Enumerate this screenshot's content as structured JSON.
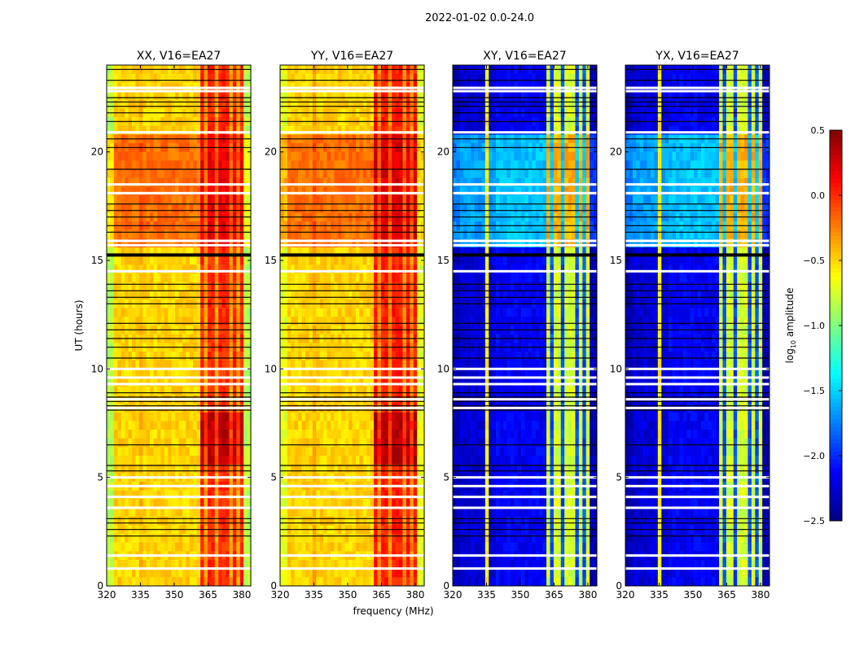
{
  "chart_data": {
    "type": "heatmap",
    "title": "2022-01-02 0.0-24.0",
    "xlabel": "frequency (MHz)",
    "ylabel": "UT (hours)",
    "xlim": [
      320,
      384
    ],
    "ylim": [
      0,
      24
    ],
    "xticks": [
      "320",
      "335",
      "350",
      "365",
      "380"
    ],
    "yticks": [
      "0",
      "5",
      "10",
      "15",
      "20"
    ],
    "colorbar": {
      "label": "log10 amplitude",
      "range": [
        -2.5,
        0.5
      ],
      "ticks": [
        "0.5",
        "0.0",
        "−0.5",
        "−1.0",
        "−1.5",
        "−2.0",
        "−2.5"
      ],
      "colormap": "jet"
    },
    "panels": [
      {
        "title": "XX, V16=EA27",
        "base": -0.5,
        "edge": -0.85,
        "band": 0.0,
        "stripe": -0.35,
        "day_boost": 0.3,
        "ruler": -0.3
      },
      {
        "title": "YY, V16=EA27",
        "base": -0.5,
        "edge": -0.7,
        "band": 0.05,
        "stripe": -0.3,
        "day_boost": 0.3,
        "ruler": -0.3
      },
      {
        "title": "XY, V16=EA27",
        "base": -2.15,
        "edge": -2.35,
        "band": -0.75,
        "stripe": -1.9,
        "day_boost": 0.6,
        "ruler": -0.6
      },
      {
        "title": "YX, V16=EA27",
        "base": -2.15,
        "edge": -2.35,
        "band": -0.75,
        "stripe": -1.9,
        "day_boost": 0.6,
        "ruler": -0.6
      }
    ],
    "flags_black": [
      2.3,
      2.6,
      2.9,
      3.1,
      5.3,
      5.55,
      6.5,
      8.1,
      8.3,
      8.5,
      8.7,
      8.9,
      10.5,
      11.0,
      11.4,
      11.8,
      12.1,
      13.0,
      13.3,
      13.6,
      13.9,
      15.25,
      16.3,
      16.6,
      17.0,
      17.3,
      17.6,
      19.2,
      20.2,
      20.6,
      21.4,
      21.8,
      22.1,
      22.3,
      22.5,
      23.3,
      23.8
    ],
    "flags_white": [
      0.8,
      1.4,
      3.6,
      4.1,
      4.6,
      5.0,
      8.2,
      8.6,
      9.3,
      9.6,
      10.0,
      14.5,
      15.7,
      15.9,
      18.1,
      18.5,
      20.9,
      22.8,
      22.95
    ]
  }
}
